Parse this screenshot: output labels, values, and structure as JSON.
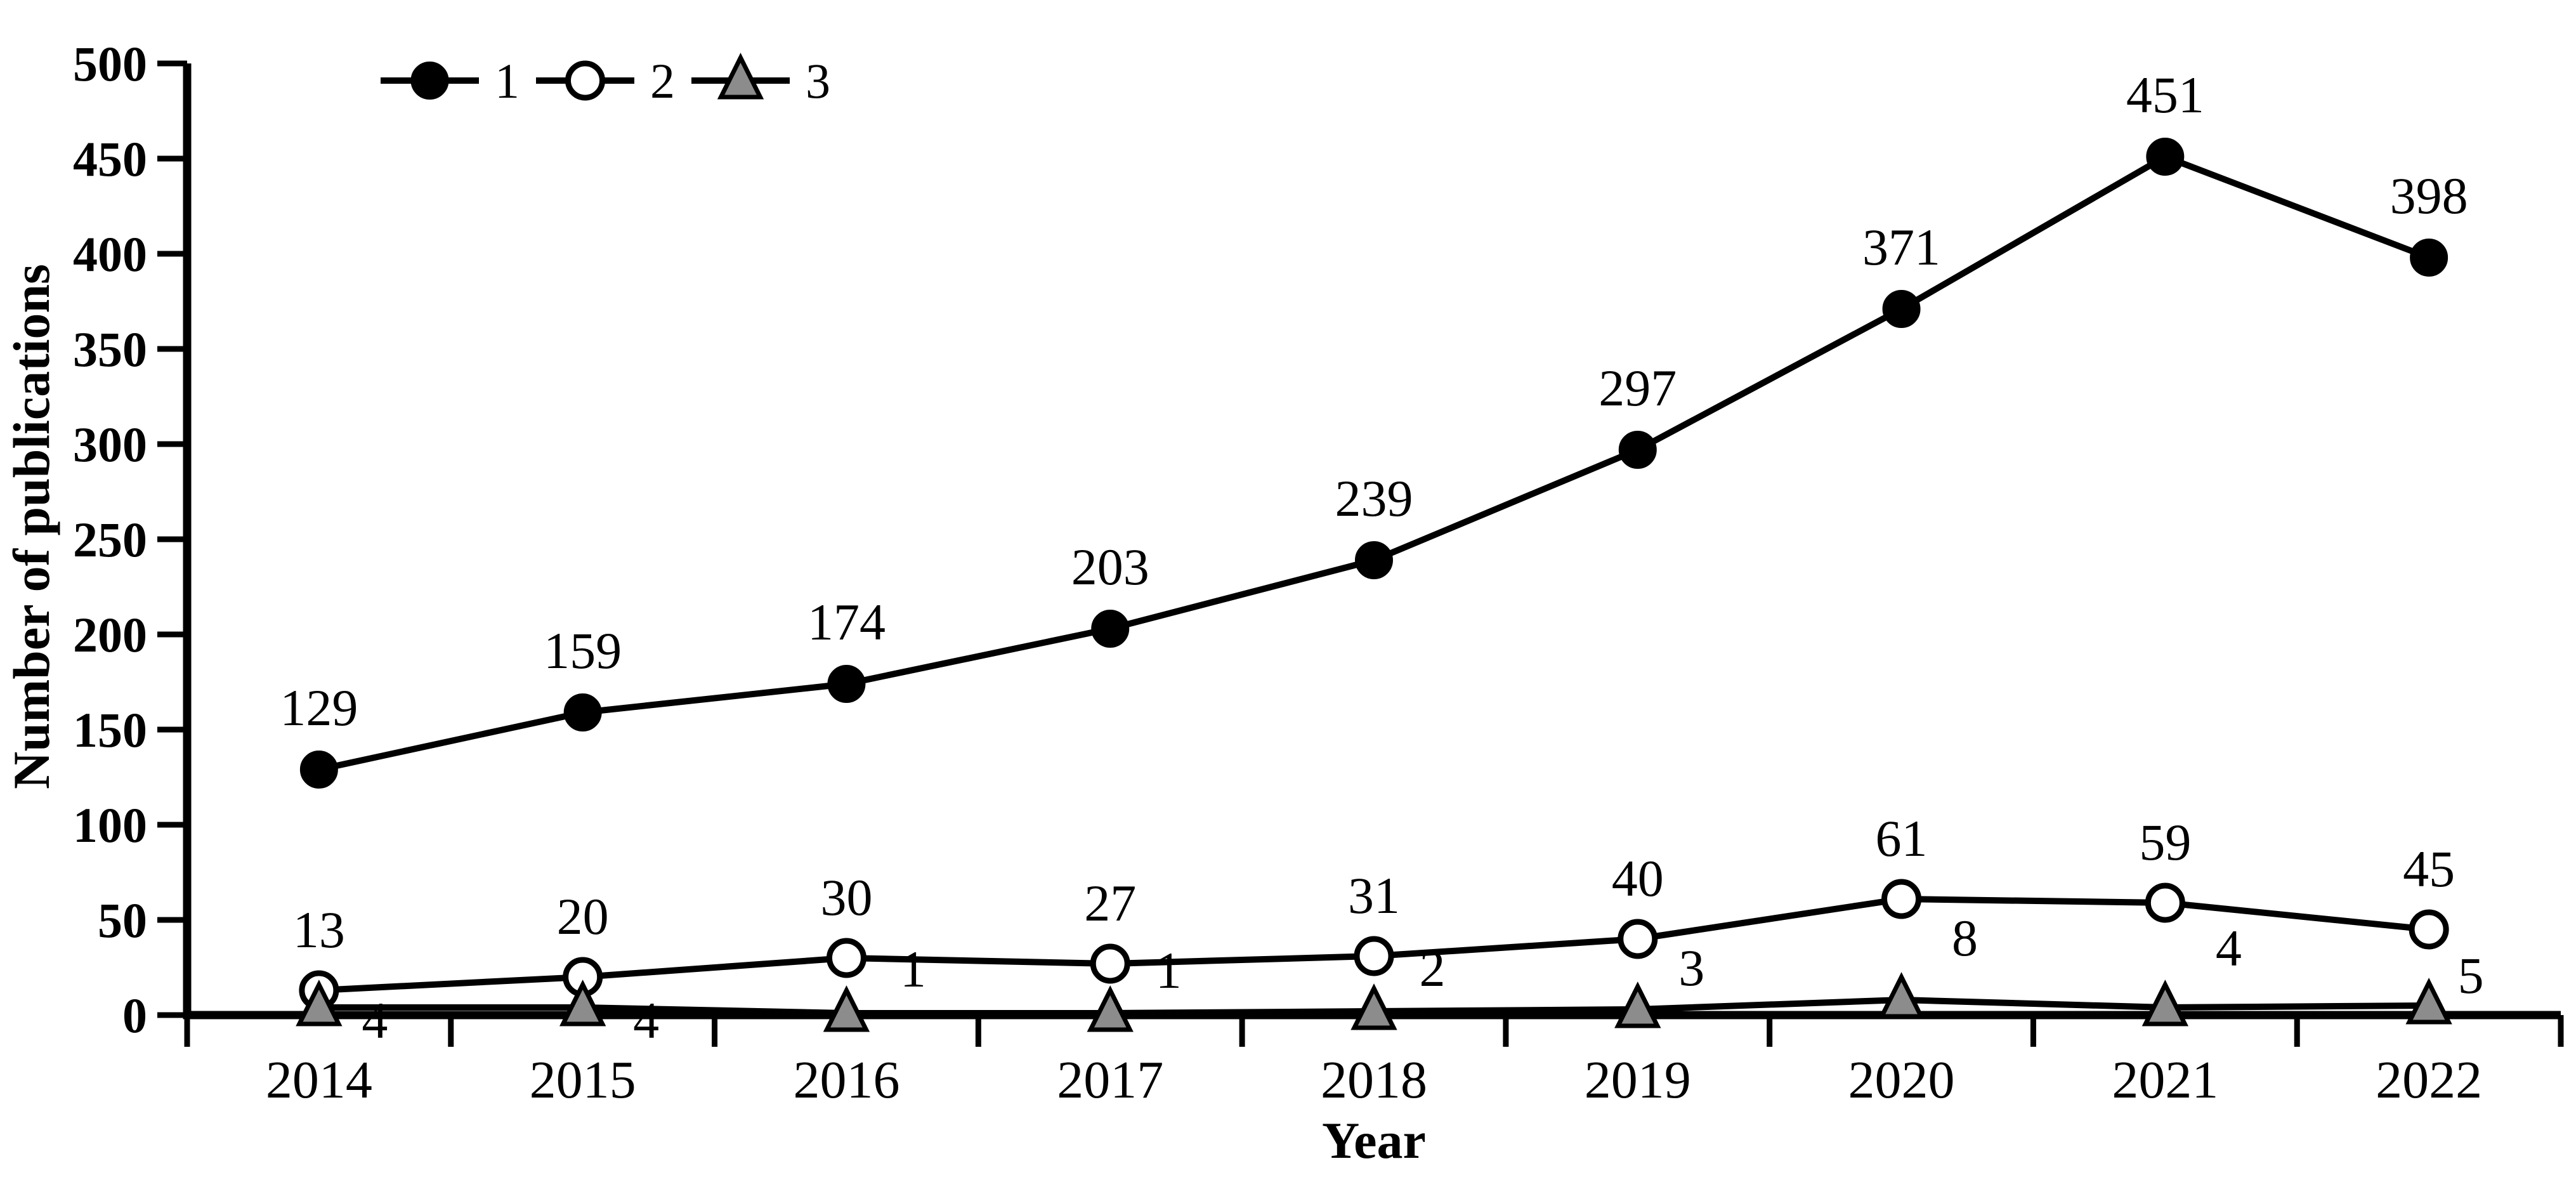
{
  "figure": {
    "background": "#ffffff",
    "text_color": "#000000",
    "axis_color": "#000000",
    "series3_gray": "#8c8c8c",
    "open_marker_fill": "#ffffff"
  },
  "chart_data": {
    "type": "line",
    "title": "",
    "xlabel": "Year",
    "ylabel": "Number of publications",
    "categories": [
      "2014",
      "2015",
      "2016",
      "2017",
      "2018",
      "2019",
      "2020",
      "2021",
      "2022"
    ],
    "series": [
      {
        "name": "1",
        "marker": "filled-circle",
        "line_color": "#000000",
        "marker_fill": "#000000",
        "marker_stroke": "#000000",
        "values": [
          129,
          159,
          174,
          203,
          239,
          297,
          371,
          451,
          398
        ],
        "data_labels": [
          "129",
          "159",
          "174",
          "203",
          "239",
          "297",
          "371",
          "451",
          "398"
        ]
      },
      {
        "name": "2",
        "marker": "open-circle",
        "line_color": "#000000",
        "marker_fill": "#ffffff",
        "marker_stroke": "#000000",
        "values": [
          13,
          20,
          30,
          27,
          31,
          40,
          61,
          59,
          45
        ],
        "data_labels": [
          "13",
          "20",
          "30",
          "27",
          "31",
          "40",
          "61",
          "59",
          "45"
        ]
      },
      {
        "name": "3",
        "marker": "filled-triangle",
        "line_color": "#000000",
        "marker_fill": "#8c8c8c",
        "marker_stroke": "#000000",
        "values": [
          4,
          4,
          1,
          1,
          2,
          3,
          8,
          4,
          5
        ],
        "data_labels": [
          "4",
          "4",
          "1",
          "1",
          "2",
          "3",
          "8",
          "4",
          "5"
        ]
      }
    ],
    "ylim": [
      0,
      500
    ],
    "y_ticks": [
      0,
      50,
      100,
      150,
      200,
      250,
      300,
      350,
      400,
      450,
      500
    ],
    "y_tick_labels": [
      "0",
      "50",
      "100",
      "150",
      "200",
      "250",
      "300",
      "350",
      "400",
      "450",
      "500"
    ],
    "grid": false,
    "legend_position": "top-left",
    "legend_entries": [
      "1",
      "2",
      "3"
    ]
  }
}
